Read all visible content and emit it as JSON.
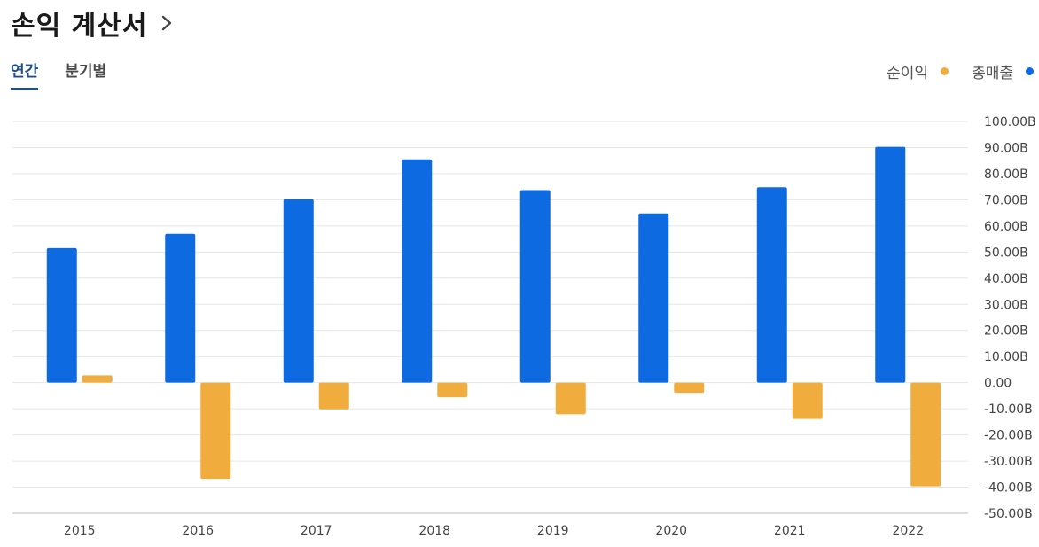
{
  "header": {
    "title": "손익 계산서"
  },
  "tabs": [
    {
      "label": "연간",
      "active": true
    },
    {
      "label": "분기별",
      "active": false
    }
  ],
  "legend": [
    {
      "label": "순이익",
      "color": "#f0ad3e"
    },
    {
      "label": "총매출",
      "color": "#0d6ae0"
    }
  ],
  "chart_data": {
    "type": "bar",
    "categories": [
      "2015",
      "2016",
      "2017",
      "2018",
      "2019",
      "2020",
      "2021",
      "2022"
    ],
    "series": [
      {
        "name": "총매출",
        "color": "#0d6ae0",
        "values": [
          51.5,
          57,
          70.2,
          85.5,
          73.7,
          64.8,
          74.8,
          90.3
        ]
      },
      {
        "name": "순이익",
        "color": "#f0ad3e",
        "values": [
          2.8,
          -36.8,
          -10.2,
          -5.6,
          -12.1,
          -3.9,
          -13.9,
          -39.7
        ]
      }
    ],
    "ylim": [
      -50,
      100
    ],
    "yticks": [
      100,
      90,
      80,
      70,
      60,
      50,
      40,
      30,
      20,
      10,
      0,
      -10,
      -20,
      -30,
      -40,
      -50
    ],
    "ytick_labels": [
      "100.00B",
      "90.00B",
      "80.00B",
      "70.00B",
      "60.00B",
      "50.00B",
      "40.00B",
      "30.00B",
      "20.00B",
      "10.00B",
      "0.00",
      "-10.00B",
      "-20.00B",
      "-30.00B",
      "-40.00B",
      "-50.00B"
    ],
    "grid": true,
    "y_axis_position": "right",
    "legend_position": "top-right"
  }
}
